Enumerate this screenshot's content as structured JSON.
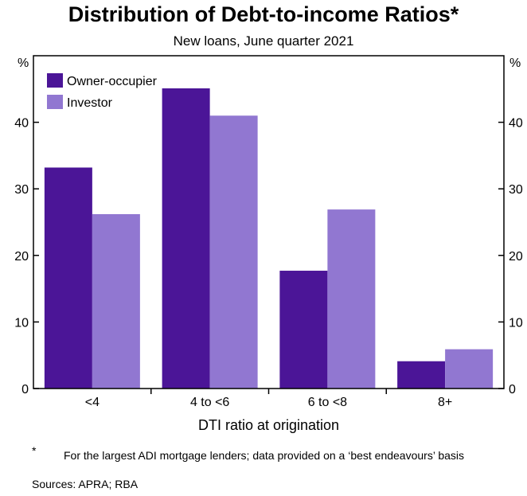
{
  "title": "Distribution of Debt-to-income Ratios*",
  "subtitle": "New loans, June quarter 2021",
  "colors": {
    "owner_occupier": "#4b1597",
    "investor": "#9177d1",
    "axis": "#000000"
  },
  "chart_data": {
    "type": "bar",
    "title": "Distribution of Debt-to-income Ratios*",
    "subtitle": "New loans, June quarter 2021",
    "categories": [
      "<4",
      "4 to <6",
      "6 to <8",
      "8+"
    ],
    "series": [
      {
        "name": "Owner-occupier",
        "values": [
          33.2,
          45.1,
          17.7,
          4.1
        ]
      },
      {
        "name": "Investor",
        "values": [
          26.2,
          41.0,
          26.9,
          5.9
        ]
      }
    ],
    "xlabel": "DTI ratio at origination",
    "ylabel": "%",
    "ylabel_right": "%",
    "ylim": [
      0,
      50
    ],
    "yticks": [
      0,
      10,
      20,
      30,
      40
    ],
    "grid": false,
    "legend_position": "top-left"
  },
  "footnote": {
    "mark": "*",
    "text": "For the largest ADI mortgage lenders; data provided on a ‘best endeavours’ basis"
  },
  "sources": "Sources: APRA; RBA"
}
